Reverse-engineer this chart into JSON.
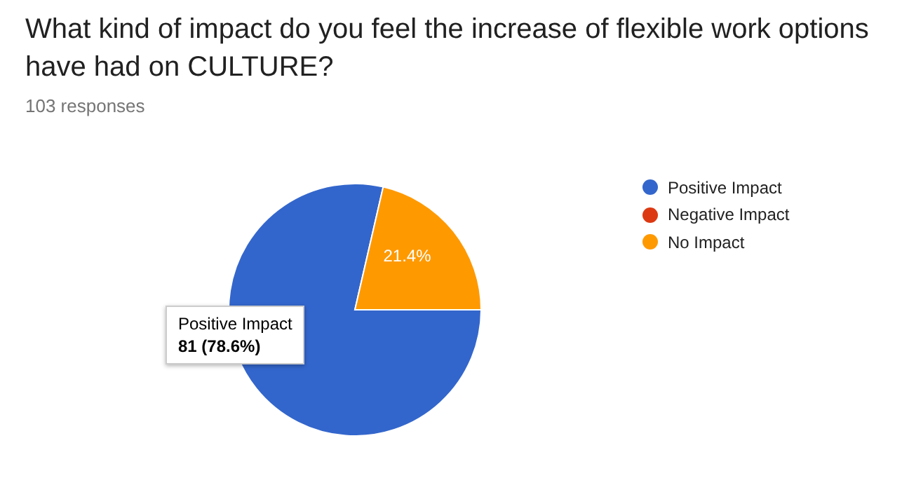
{
  "chart_data": {
    "type": "pie",
    "title": "What kind of impact do you feel the increase of flexible work options have had on CULTURE?",
    "subtitle": "103 responses",
    "categories": [
      "Positive Impact",
      "Negative Impact",
      "No Impact"
    ],
    "values": [
      78.6,
      0,
      21.4
    ],
    "colors": [
      "#3366cc",
      "#dc3912",
      "#ff9900"
    ],
    "value_labels": [
      null,
      null,
      "21.4%"
    ],
    "legend": "right",
    "annotations": [
      "Positive Impact\n81 (78.6%)"
    ]
  }
}
